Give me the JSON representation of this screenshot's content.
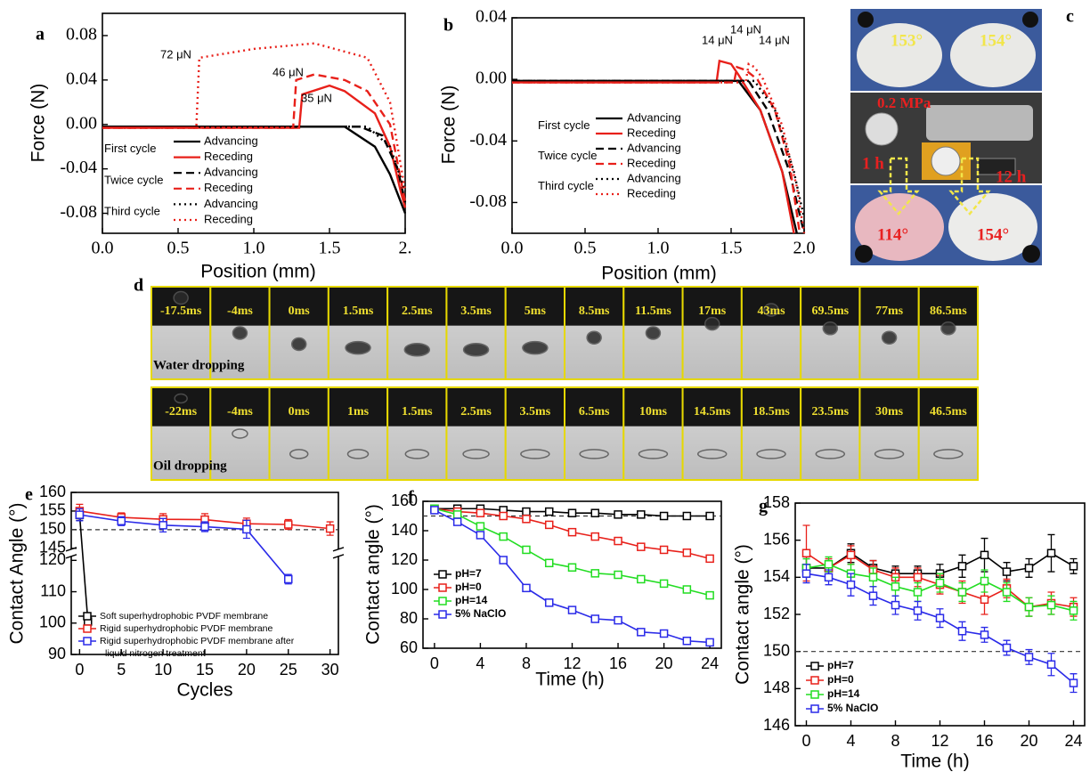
{
  "chart_data": [
    {
      "type": "line",
      "label": "a",
      "xlabel": "Position (mm)",
      "ylabel": "Force (N)",
      "xlim": [
        0,
        2.0
      ],
      "ylim": [
        -0.098,
        0.1
      ],
      "xticks": [
        {
          "value": 0,
          "label": "0.0"
        },
        0.5,
        {
          "value": 1,
          "label": "1.0"
        },
        1.5,
        {
          "value": 2,
          "label": "2."
        }
      ],
      "yticks": [
        0.08,
        0.04,
        {
          "value": 0,
          "label": "0.00"
        },
        -0.04,
        -0.08
      ],
      "legend_groups": [
        "First cycle",
        "Twice cycle",
        "Third cycle"
      ],
      "annotations": [
        "72 μN",
        "46 μN",
        "35 μN"
      ],
      "series": [
        {
          "name": "Advancing",
          "color": "#000000",
          "dash": "solid",
          "x": [
            0,
            1.6,
            1.8,
            1.9,
            2.0
          ],
          "values": [
            -0.002,
            -0.002,
            -0.02,
            -0.045,
            -0.08
          ]
        },
        {
          "name": "Receding",
          "color": "#e8201a",
          "dash": "solid",
          "x": [
            0,
            1.3,
            1.32,
            1.5,
            1.6,
            1.8,
            1.9,
            1.97,
            2.0
          ],
          "values": [
            -0.003,
            -0.003,
            0.027,
            0.035,
            0.03,
            0.01,
            -0.02,
            -0.06,
            -0.075
          ]
        },
        {
          "name": "Advancing",
          "color": "#000000",
          "dash": "dashed",
          "x": [
            0,
            1.7,
            1.85,
            1.95,
            2.0
          ],
          "values": [
            -0.002,
            -0.002,
            -0.01,
            -0.04,
            -0.07
          ]
        },
        {
          "name": "Receding",
          "color": "#e8201a",
          "dash": "dashed",
          "x": [
            0,
            1.26,
            1.28,
            1.4,
            1.6,
            1.75,
            1.9,
            2.0
          ],
          "values": [
            -0.003,
            -0.003,
            0.04,
            0.045,
            0.04,
            0.03,
            0,
            -0.07
          ]
        },
        {
          "name": "Advancing",
          "color": "#000000",
          "dash": "dotted",
          "x": [
            0,
            1.75,
            1.9,
            2.0
          ],
          "values": [
            -0.002,
            -0.002,
            -0.02,
            -0.06
          ]
        },
        {
          "name": "Receding",
          "color": "#e8201a",
          "dash": "dotted",
          "x": [
            0,
            0.62,
            0.64,
            1.0,
            1.4,
            1.75,
            1.9,
            2.0
          ],
          "values": [
            -0.003,
            -0.003,
            0.06,
            0.068,
            0.073,
            0.06,
            0.02,
            -0.06
          ]
        }
      ]
    },
    {
      "type": "line",
      "label": "b",
      "xlabel": "Position (mm)",
      "ylabel": "Force (N)",
      "xlim": [
        0,
        2.0
      ],
      "ylim": [
        -0.1,
        0.04
      ],
      "xticks": [
        {
          "value": 0,
          "label": "0.0"
        },
        0.5,
        {
          "value": 1,
          "label": "1.0"
        },
        1.5,
        {
          "value": 2,
          "label": "2.0"
        }
      ],
      "yticks": [
        0.04,
        {
          "value": 0,
          "label": "0.00"
        },
        -0.04,
        -0.08
      ],
      "legend_groups": [
        "First cycle",
        "Twice cycle",
        "Third cycle"
      ],
      "annotations": [
        "14 μN",
        "14 μN",
        "14 μN"
      ],
      "series": [
        {
          "name": "Advancing",
          "color": "#000000",
          "dash": "solid",
          "x": [
            0,
            1.55,
            1.7,
            1.85,
            1.95
          ],
          "values": [
            -0.001,
            -0.001,
            -0.02,
            -0.06,
            -0.1
          ]
        },
        {
          "name": "Receding",
          "color": "#e8201a",
          "dash": "solid",
          "x": [
            0,
            1.4,
            1.42,
            1.5,
            1.55,
            1.7,
            1.85,
            1.93
          ],
          "values": [
            -0.002,
            -0.002,
            0.012,
            0.01,
            0.003,
            -0.02,
            -0.06,
            -0.1
          ]
        },
        {
          "name": "Advancing",
          "color": "#000000",
          "dash": "dashed",
          "x": [
            0,
            1.62,
            1.75,
            1.9,
            2.0
          ],
          "values": [
            -0.001,
            -0.001,
            -0.02,
            -0.06,
            -0.1
          ]
        },
        {
          "name": "Receding",
          "color": "#e8201a",
          "dash": "dashed",
          "x": [
            0,
            1.52,
            1.54,
            1.6,
            1.68,
            1.8,
            1.9,
            1.97
          ],
          "values": [
            -0.002,
            -0.002,
            0.008,
            0.006,
            0,
            -0.02,
            -0.055,
            -0.1
          ]
        },
        {
          "name": "Advancing",
          "color": "#000000",
          "dash": "dotted",
          "x": [
            0,
            1.66,
            1.8,
            1.93,
            2.0
          ],
          "values": [
            -0.001,
            -0.001,
            -0.02,
            -0.06,
            -0.09
          ]
        },
        {
          "name": "Receding",
          "color": "#e8201a",
          "dash": "dotted",
          "x": [
            0,
            1.6,
            1.62,
            1.66,
            1.72,
            1.85,
            1.95,
            2.0
          ],
          "values": [
            -0.002,
            -0.002,
            0.01,
            0.008,
            0,
            -0.03,
            -0.07,
            -0.1
          ]
        }
      ]
    },
    {
      "type": "line",
      "label": "e",
      "xlabel": "Cycles",
      "ylabel": "Contact Angle (°)",
      "xlim": [
        -1,
        31
      ],
      "ylim": [
        90,
        160
      ],
      "ybreak": [
        121,
        145
      ],
      "xticks": [
        0,
        5,
        10,
        15,
        20,
        25,
        30
      ],
      "yticks": [
        90,
        100,
        110,
        120,
        145,
        150,
        155,
        160
      ],
      "reference_line": 150,
      "marker": "square-open",
      "series": [
        {
          "name": "Soft superhydrophobic PVDF membrane",
          "color": "#000000",
          "x": [
            0,
            1
          ],
          "values": [
            154,
            100.5
          ],
          "errors": [
            1.5,
            1.5
          ]
        },
        {
          "name": "Rigid superhydrophobic PVDF membrane",
          "color": "#e8201a",
          "x": [
            0,
            5,
            10,
            15,
            20,
            25,
            30
          ],
          "values": [
            155,
            153.3,
            152.8,
            152.7,
            151.6,
            151.4,
            150.3
          ],
          "errors": [
            1.8,
            1.2,
            1.5,
            1.6,
            1.5,
            1.3,
            1.8
          ]
        },
        {
          "name": "Rigid superhydrophobic PVDF membrane after liquid nitrogen treatment",
          "color": "#2a2ae8",
          "x": [
            0,
            5,
            10,
            15,
            20,
            25
          ],
          "values": [
            154,
            152.3,
            151.2,
            150.8,
            150.1,
            114
          ],
          "errors": [
            1.6,
            1.2,
            1.8,
            1.3,
            2.4,
            1.5
          ]
        }
      ]
    },
    {
      "type": "line",
      "label": "f",
      "xlabel": "Time (h)",
      "ylabel": "Contact angle (°)",
      "xlim": [
        -1,
        25
      ],
      "ylim": [
        60,
        160
      ],
      "xticks": [
        0,
        4,
        8,
        12,
        16,
        20,
        24
      ],
      "yticks": [
        60,
        80,
        100,
        120,
        140,
        160
      ],
      "reference_line": 150,
      "marker": "square-open",
      "series": [
        {
          "name": "pH=7",
          "color": "#000000",
          "x": [
            0,
            2,
            4,
            6,
            8,
            10,
            12,
            14,
            16,
            18,
            20,
            22,
            24
          ],
          "values": [
            155,
            155,
            155,
            154,
            153,
            153,
            152,
            152,
            151,
            151,
            150,
            150,
            150
          ],
          "errors": [
            1.5,
            1.5,
            1.5,
            1.5,
            1.5,
            1.5,
            1.5,
            1.5,
            1.5,
            1.5,
            1.5,
            1.5,
            1.5
          ]
        },
        {
          "name": "pH=0",
          "color": "#e8201a",
          "x": [
            0,
            2,
            4,
            6,
            8,
            10,
            12,
            14,
            16,
            18,
            20,
            22,
            24
          ],
          "values": [
            155,
            153,
            152,
            150,
            148,
            144,
            139,
            136,
            133,
            129,
            127,
            125,
            121
          ],
          "errors": [
            1.5,
            1.5,
            1.5,
            1.5,
            1.5,
            1.5,
            1.5,
            1.5,
            1.5,
            1.5,
            1.5,
            1.5,
            1.5
          ]
        },
        {
          "name": "pH=14",
          "color": "#22dd22",
          "x": [
            0,
            2,
            4,
            6,
            8,
            10,
            12,
            14,
            16,
            18,
            20,
            22,
            24
          ],
          "values": [
            155,
            151,
            143,
            136,
            127,
            118,
            115,
            111,
            110,
            107,
            104,
            100,
            96
          ],
          "errors": [
            1.5,
            1.5,
            1.5,
            1.5,
            1.5,
            1.5,
            1.5,
            1.5,
            1.5,
            1.5,
            1.5,
            1.5,
            1.5
          ]
        },
        {
          "name": "5% NaClO",
          "color": "#2a2ae8",
          "x": [
            0,
            2,
            4,
            6,
            8,
            10,
            12,
            14,
            16,
            18,
            20,
            22,
            24
          ],
          "values": [
            154,
            146,
            137,
            120,
            101,
            91,
            86,
            80,
            79,
            71,
            70,
            65,
            64
          ],
          "errors": [
            1.5,
            1.5,
            1.5,
            1.5,
            1.5,
            1.5,
            1.5,
            1.5,
            1.5,
            1.5,
            1.5,
            1.5,
            1.5
          ]
        }
      ]
    },
    {
      "type": "line",
      "label": "g",
      "xlabel": "Time (h)",
      "ylabel": "Contact angle (°)",
      "xlim": [
        -1,
        25
      ],
      "ylim": [
        146,
        158
      ],
      "xticks": [
        0,
        4,
        8,
        12,
        16,
        20,
        24
      ],
      "yticks": [
        146,
        148,
        150,
        152,
        154,
        156,
        158
      ],
      "reference_line": 150,
      "marker": "square-open",
      "series": [
        {
          "name": "pH=7",
          "color": "#000000",
          "x": [
            0,
            2,
            4,
            6,
            8,
            10,
            12,
            14,
            16,
            18,
            20,
            22,
            24
          ],
          "values": [
            154.5,
            154.5,
            155.3,
            154.5,
            154.2,
            154.2,
            154.2,
            154.6,
            155.2,
            154.3,
            154.5,
            155.3,
            154.6
          ],
          "errors": [
            0.5,
            0.4,
            0.5,
            0.4,
            0.4,
            0.4,
            0.5,
            0.6,
            0.9,
            0.5,
            0.5,
            1.0,
            0.4
          ]
        },
        {
          "name": "pH=0",
          "color": "#e8201a",
          "x": [
            0,
            2,
            4,
            6,
            8,
            10,
            12,
            14,
            16,
            18,
            20,
            22,
            24
          ],
          "values": [
            155.3,
            154.5,
            155.2,
            154.4,
            154.0,
            154.0,
            153.6,
            153.2,
            152.8,
            153.4,
            152.4,
            152.6,
            152.4
          ],
          "errors": [
            1.5,
            0.5,
            0.5,
            0.5,
            0.5,
            0.5,
            0.5,
            0.6,
            0.8,
            0.5,
            0.5,
            0.6,
            0.5
          ]
        },
        {
          "name": "pH=14",
          "color": "#22dd22",
          "x": [
            0,
            2,
            4,
            6,
            8,
            10,
            12,
            14,
            16,
            18,
            20,
            22,
            24
          ],
          "values": [
            154.5,
            154.7,
            154.2,
            154.0,
            153.5,
            153.2,
            153.7,
            153.2,
            153.8,
            153.2,
            152.4,
            152.5,
            152.2
          ],
          "errors": [
            0.5,
            0.4,
            0.5,
            0.5,
            0.5,
            0.5,
            0.5,
            0.5,
            0.6,
            0.5,
            0.5,
            0.5,
            0.5
          ]
        },
        {
          "name": "5% NaClO",
          "color": "#2a2ae8",
          "x": [
            0,
            2,
            4,
            6,
            8,
            10,
            12,
            14,
            16,
            18,
            20,
            22,
            24
          ],
          "values": [
            154.2,
            154.0,
            153.6,
            153.0,
            152.5,
            152.2,
            151.8,
            151.1,
            150.9,
            150.2,
            149.7,
            149.3,
            148.3
          ],
          "errors": [
            0.5,
            0.4,
            0.6,
            0.5,
            0.5,
            0.5,
            0.5,
            0.5,
            0.4,
            0.4,
            0.4,
            0.6,
            0.5
          ]
        }
      ]
    }
  ],
  "photo_panel": {
    "label": "c",
    "angles_top": [
      "153°",
      "154°"
    ],
    "pressure": "0.2 MPa",
    "times": [
      "1 h",
      "12 h"
    ],
    "angles_bottom": [
      "114°",
      "154°"
    ]
  },
  "sequence_panel": {
    "label": "d",
    "rows": [
      {
        "name": "Water dropping",
        "frames": [
          "-17.5ms",
          "-4ms",
          "0ms",
          "1.5ms",
          "2.5ms",
          "3.5ms",
          "5ms",
          "8.5ms",
          "11.5ms",
          "17ms",
          "43ms",
          "69.5ms",
          "77ms",
          "86.5ms"
        ]
      },
      {
        "name": "Oil dropping",
        "frames": [
          "-22ms",
          "-4ms",
          "0ms",
          "1ms",
          "1.5ms",
          "2.5ms",
          "3.5ms",
          "6.5ms",
          "10ms",
          "14.5ms",
          "18.5ms",
          "23.5ms",
          "30ms",
          "46.5ms"
        ]
      }
    ]
  }
}
